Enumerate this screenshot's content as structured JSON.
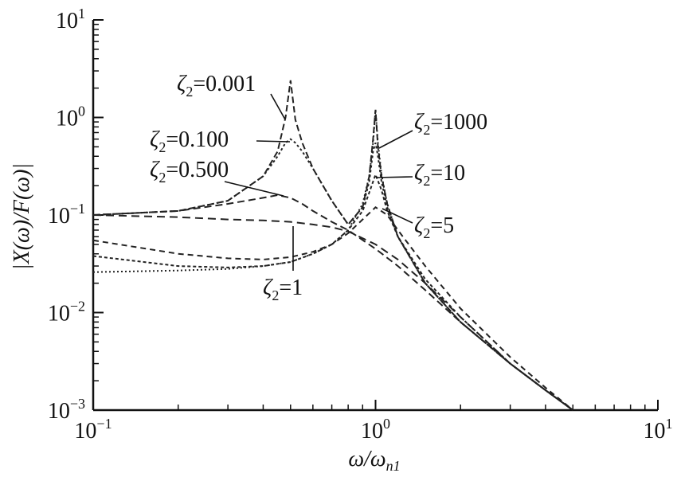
{
  "chart_data": {
    "type": "line",
    "title": "",
    "xlabel_base": "ω/ω",
    "xlabel_sub": "n1",
    "ylabel": "|X(ω)/F(ω)|",
    "x_scale": "log",
    "y_scale": "log",
    "xlim": [
      0.1,
      10
    ],
    "ylim": [
      0.001,
      10
    ],
    "x_ticks": [
      {
        "value": 0.1,
        "base": "10",
        "exp": "−1"
      },
      {
        "value": 1,
        "base": "10",
        "exp": "0"
      },
      {
        "value": 10,
        "base": "10",
        "exp": "1"
      }
    ],
    "y_ticks": [
      {
        "value": 0.001,
        "base": "10",
        "exp": "−3"
      },
      {
        "value": 0.01,
        "base": "10",
        "exp": "−2"
      },
      {
        "value": 0.1,
        "base": "10",
        "exp": "−1"
      },
      {
        "value": 1,
        "base": "10",
        "exp": "0"
      },
      {
        "value": 10,
        "base": "10",
        "exp": "1"
      }
    ],
    "grid": false,
    "line_color": "#222222",
    "series": [
      {
        "name": "ζ2=0.001",
        "x": [
          0.1,
          0.2,
          0.3,
          0.4,
          0.45,
          0.48,
          0.5,
          0.52,
          0.55,
          0.6,
          0.7,
          0.8,
          0.9,
          0.95,
          0.98,
          1.0,
          1.02,
          1.05,
          1.1,
          1.2,
          1.5,
          2,
          3,
          4,
          5
        ],
        "y": [
          0.1,
          0.11,
          0.14,
          0.25,
          0.45,
          1.0,
          2.4,
          0.95,
          0.55,
          0.3,
          0.14,
          0.08,
          0.12,
          0.25,
          0.6,
          1.2,
          0.5,
          0.25,
          0.13,
          0.06,
          0.02,
          0.008,
          0.003,
          0.0016,
          0.001
        ]
      },
      {
        "name": "ζ2=0.100",
        "x": [
          0.1,
          0.2,
          0.3,
          0.4,
          0.45,
          0.48,
          0.5,
          0.52,
          0.55,
          0.6,
          0.7,
          0.8,
          0.9,
          0.95,
          0.98,
          1.0,
          1.02,
          1.05,
          1.1,
          1.2,
          1.5,
          2,
          3,
          4,
          5
        ],
        "y": [
          0.1,
          0.11,
          0.14,
          0.25,
          0.4,
          0.55,
          0.6,
          0.55,
          0.45,
          0.3,
          0.14,
          0.08,
          0.12,
          0.22,
          0.45,
          0.55,
          0.4,
          0.22,
          0.12,
          0.06,
          0.02,
          0.008,
          0.003,
          0.0016,
          0.001
        ]
      },
      {
        "name": "ζ2=0.500",
        "x": [
          0.1,
          0.2,
          0.3,
          0.4,
          0.45,
          0.5,
          0.55,
          0.6,
          0.7,
          0.8,
          1.0,
          1.2,
          1.5,
          2,
          3,
          4,
          5
        ],
        "y": [
          0.1,
          0.11,
          0.13,
          0.15,
          0.16,
          0.15,
          0.13,
          0.11,
          0.085,
          0.07,
          0.045,
          0.03,
          0.017,
          0.008,
          0.003,
          0.0016,
          0.001
        ]
      },
      {
        "name": "ζ2=1",
        "x": [
          0.1,
          0.2,
          0.3,
          0.4,
          0.5,
          0.6,
          0.7,
          0.8,
          1.0,
          1.2,
          1.5,
          2,
          3,
          4,
          5
        ],
        "y": [
          0.1,
          0.095,
          0.09,
          0.088,
          0.085,
          0.08,
          0.075,
          0.068,
          0.05,
          0.035,
          0.02,
          0.009,
          0.003,
          0.0016,
          0.001
        ]
      },
      {
        "name": "ζ2=5",
        "x": [
          0.1,
          0.2,
          0.3,
          0.4,
          0.5,
          0.6,
          0.7,
          0.8,
          0.9,
          1.0,
          1.1,
          1.2,
          1.5,
          2,
          3,
          4,
          5
        ],
        "y": [
          0.055,
          0.04,
          0.036,
          0.035,
          0.037,
          0.042,
          0.05,
          0.065,
          0.09,
          0.12,
          0.1,
          0.07,
          0.03,
          0.011,
          0.0035,
          0.0017,
          0.001
        ]
      },
      {
        "name": "ζ2=10",
        "x": [
          0.1,
          0.2,
          0.3,
          0.4,
          0.5,
          0.6,
          0.7,
          0.8,
          0.9,
          0.95,
          1.0,
          1.05,
          1.1,
          1.2,
          1.5,
          2,
          3,
          4,
          5
        ],
        "y": [
          0.038,
          0.03,
          0.029,
          0.03,
          0.033,
          0.04,
          0.05,
          0.07,
          0.11,
          0.17,
          0.26,
          0.18,
          0.11,
          0.06,
          0.022,
          0.009,
          0.003,
          0.0016,
          0.001
        ]
      },
      {
        "name": "ζ2=1000",
        "x": [
          0.1,
          0.2,
          0.3,
          0.4,
          0.5,
          0.6,
          0.7,
          0.8,
          0.9,
          0.95,
          0.98,
          1.0,
          1.02,
          1.05,
          1.1,
          1.2,
          1.5,
          2,
          3,
          4,
          5
        ],
        "y": [
          0.026,
          0.027,
          0.028,
          0.03,
          0.033,
          0.04,
          0.05,
          0.07,
          0.13,
          0.25,
          0.55,
          1.2,
          0.55,
          0.26,
          0.13,
          0.06,
          0.02,
          0.008,
          0.003,
          0.0016,
          0.001
        ]
      }
    ],
    "annotations": [
      {
        "series": "ζ2=0.001",
        "base": "ζ",
        "sub": "2",
        "rest": "=0.001"
      },
      {
        "series": "ζ2=0.100",
        "base": "ζ",
        "sub": "2",
        "rest": "=0.100"
      },
      {
        "series": "ζ2=0.500",
        "base": "ζ",
        "sub": "2",
        "rest": "=0.500"
      },
      {
        "series": "ζ2=1",
        "base": "ζ",
        "sub": "2",
        "rest": "=1"
      },
      {
        "series": "ζ2=5",
        "base": "ζ",
        "sub": "2",
        "rest": "=5"
      },
      {
        "series": "ζ2=10",
        "base": "ζ",
        "sub": "2",
        "rest": "=10"
      },
      {
        "series": "ζ2=1000",
        "base": "ζ",
        "sub": "2",
        "rest": "=1000"
      }
    ]
  }
}
